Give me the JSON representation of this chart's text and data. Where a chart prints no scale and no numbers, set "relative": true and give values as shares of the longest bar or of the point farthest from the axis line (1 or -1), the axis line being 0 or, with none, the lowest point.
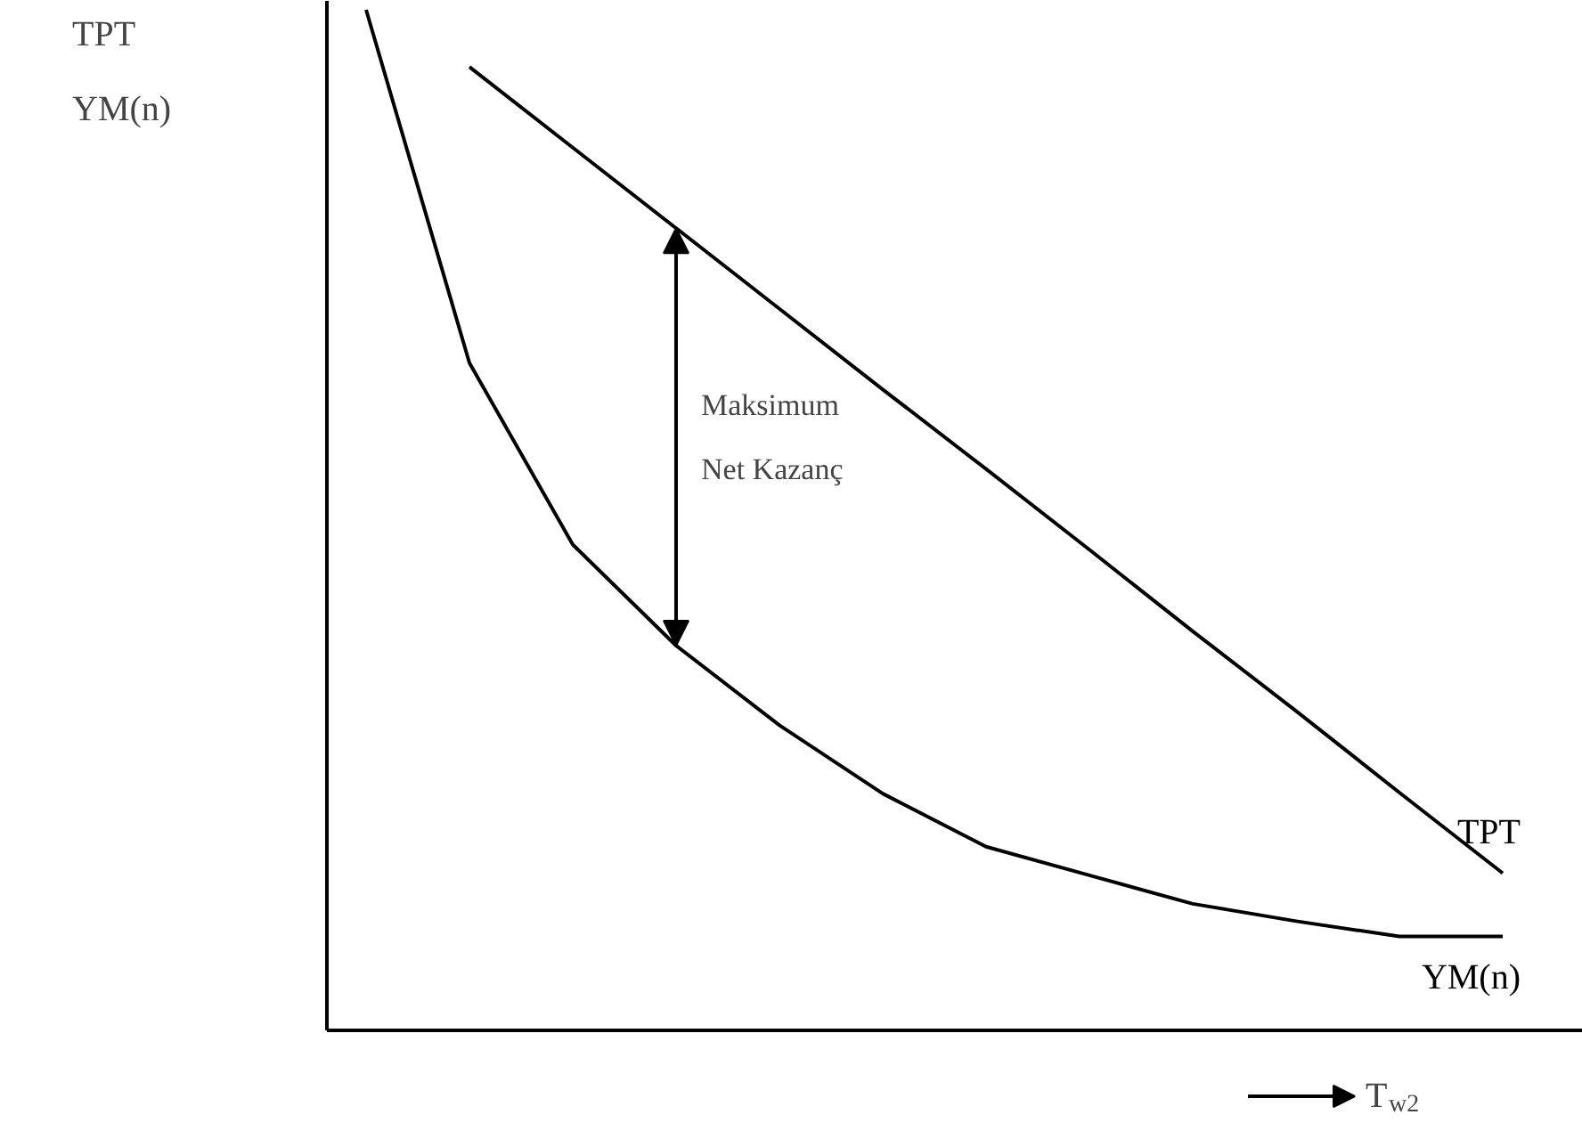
{
  "chart_data": {
    "type": "line",
    "relative": true,
    "ylabel": "TPT\nYM(n)",
    "xlabel": "T$_{w2}$",
    "categories": [
      null,
      null,
      null,
      null,
      null,
      null,
      null,
      null,
      null,
      null,
      null,
      null
    ],
    "series": [
      {
        "name": "TPT",
        "color": "#000000",
        "values": [
          null,
          0.944,
          0.865,
          0.786,
          0.707,
          0.628,
          0.55,
          0.471,
          0.391,
          0.313,
          0.233,
          0.154
        ]
      },
      {
        "name": "YM(n)",
        "color": "#000000",
        "values": [
          1.0,
          0.654,
          0.476,
          0.377,
          0.299,
          0.232,
          0.18,
          0.152,
          0.124,
          0.107,
          0.092,
          0.092
        ]
      }
    ],
    "annotations": [
      "Maksimum\nNet  Kazanç"
    ],
    "marker": "none",
    "line_style": "solid"
  }
}
